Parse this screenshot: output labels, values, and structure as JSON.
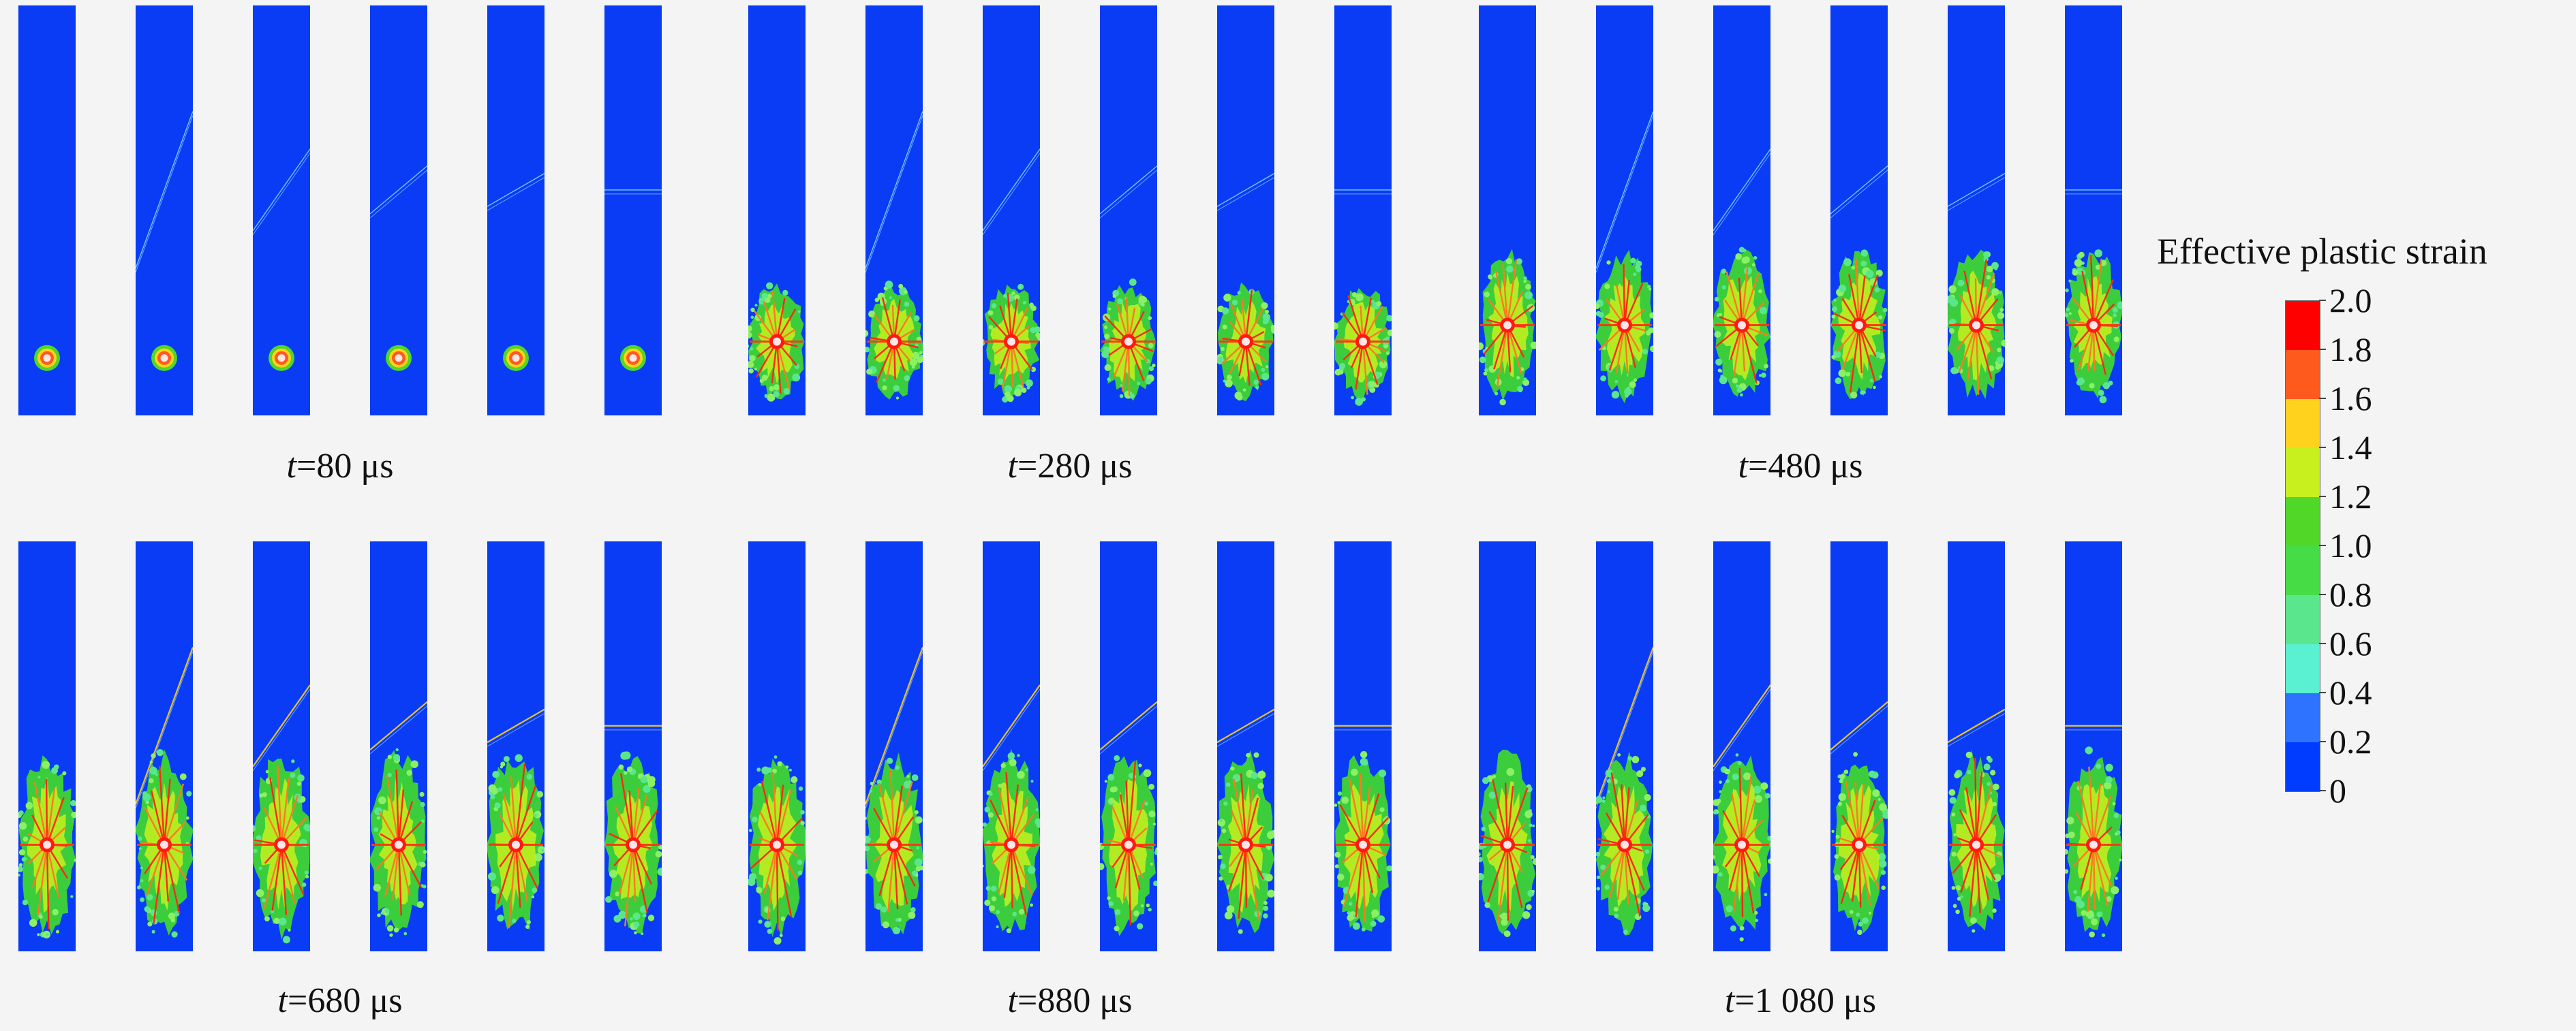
{
  "figure": {
    "time_unit": "μs",
    "time_var": "t",
    "legend": {
      "title": "Effective plastic strain",
      "ticks": [
        "2.0",
        "1.8",
        "1.6",
        "1.4",
        "1.2",
        "1.0",
        "0.8",
        "0.6",
        "0.4",
        "0.2",
        "0"
      ],
      "colors_top_to_bottom": [
        "#ff0000",
        "#ff5a1e",
        "#ffd21e",
        "#c8f01e",
        "#50d728",
        "#46dc46",
        "#5ae68c",
        "#5af0d2",
        "#2d73ff",
        "#003cff"
      ]
    },
    "background_color": "#0a3cf5",
    "panels": [
      {
        "label": "t",
        "value": "=80 μs",
        "stage": 0
      },
      {
        "label": "t",
        "value": "=280 μs",
        "stage": 1
      },
      {
        "label": "t",
        "value": "=480 μs",
        "stage": 2
      },
      {
        "label": "t",
        "value": "=680 μs",
        "stage": 3
      },
      {
        "label": "t",
        "value": "=880 μs",
        "stage": 4
      },
      {
        "label": "t",
        "value": "=1 080 μs",
        "stage": 5
      }
    ],
    "columns_per_panel": 6,
    "crack_angles_deg": [
      70,
      55,
      40,
      30,
      0
    ]
  }
}
